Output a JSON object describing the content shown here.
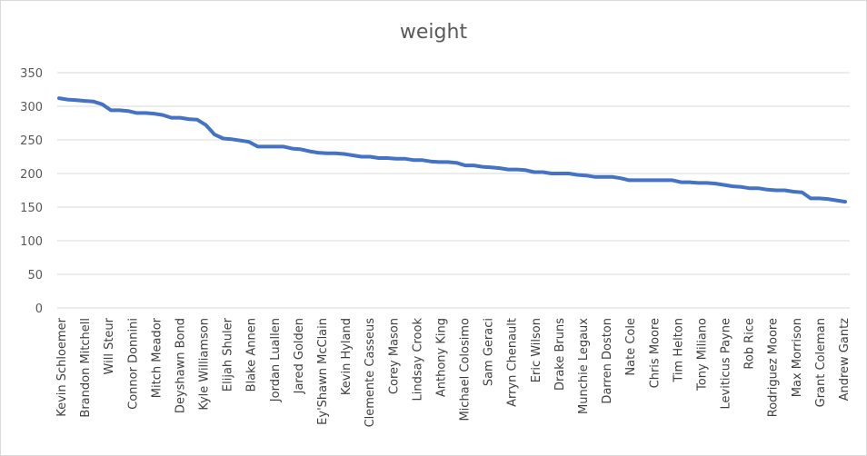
{
  "chart_data": {
    "type": "line",
    "title": "weight",
    "xlabel": "",
    "ylabel": "",
    "ylim": [
      0,
      350
    ],
    "yticks": [
      0,
      50,
      100,
      150,
      200,
      250,
      300,
      350
    ],
    "grid": true,
    "legend": "none",
    "line_color": "#4472c4",
    "labeled_categories": [
      "Kevin Schloemer",
      "Brandon Mitchell",
      "Will Steur",
      "Connor Donnini",
      "Mitch Meador",
      "Deyshawn Bond",
      "Kyle Williamson",
      "Elijah Shuler",
      "Blake Annen",
      "Jordan Luallen",
      "Jared Golden",
      "Ey'Shawn McClain",
      "Kevin Hyland",
      "Clemente Casseus",
      "Corey Mason",
      "Lindsay Crook",
      "Anthony King",
      "Michael Colosimo",
      "Sam Geraci",
      "Arryn Chenault",
      "Eric Wilson",
      "Drake Bruns",
      "Munchie Legaux",
      "Darren Doston",
      "Nate Cole",
      "Chris Moore",
      "Tim Helton",
      "Tony Miliano",
      "Leviticus Payne",
      "Rob Rice",
      "Rodriguez Moore",
      "Max Morrison",
      "Grant Coleman",
      "Andrew Gantz"
    ],
    "values": [
      312,
      310,
      309,
      308,
      307,
      303,
      294,
      294,
      293,
      290,
      290,
      289,
      287,
      283,
      283,
      281,
      280,
      272,
      258,
      252,
      251,
      249,
      247,
      240,
      240,
      240,
      240,
      237,
      236,
      233,
      231,
      230,
      230,
      229,
      227,
      225,
      225,
      223,
      223,
      222,
      222,
      220,
      220,
      218,
      217,
      217,
      216,
      212,
      212,
      210,
      209,
      208,
      206,
      206,
      205,
      202,
      202,
      200,
      200,
      200,
      198,
      197,
      195,
      195,
      195,
      193,
      190,
      190,
      190,
      190,
      190,
      190,
      187,
      187,
      186,
      186,
      185,
      183,
      181,
      180,
      178,
      178,
      176,
      175,
      175,
      173,
      172,
      163,
      163,
      162,
      160,
      158
    ]
  }
}
